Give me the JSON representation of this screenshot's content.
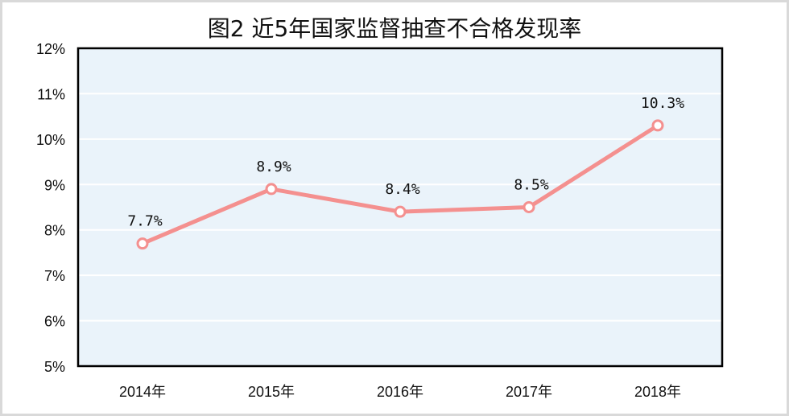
{
  "chart_data": {
    "type": "line",
    "title": "图2 近5年国家监督抽查不合格发现率",
    "categories": [
      "2014年",
      "2015年",
      "2016年",
      "2017年",
      "2018年"
    ],
    "series": [
      {
        "values": [
          7.7,
          8.9,
          8.4,
          8.5,
          10.3
        ]
      }
    ],
    "data_labels": [
      "7.7%",
      "8.9%",
      "8.4%",
      "8.5%",
      "10.3%"
    ],
    "ylim": [
      5,
      12
    ],
    "yticks": [
      "5%",
      "6%",
      "7%",
      "8%",
      "9%",
      "10%",
      "11%",
      "12%"
    ],
    "xlabel": "",
    "ylabel": "",
    "grid": true,
    "legend": "none",
    "colors": {
      "line": "#f4908f",
      "plot_bg": "#eaf3fa",
      "grid": "#ffffff",
      "axis": "#000000"
    }
  }
}
